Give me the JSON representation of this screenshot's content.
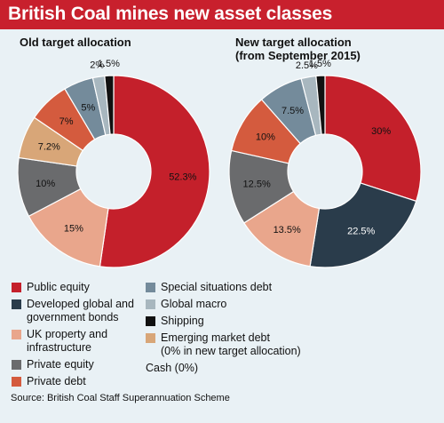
{
  "header": {
    "title": "British Coal mines new asset classes"
  },
  "colors": {
    "public_equity": "#c4202b",
    "developed_bonds": "#2a3c4b",
    "uk_property": "#e9a68c",
    "private_equity": "#6a6b6d",
    "private_debt": "#d45b3e",
    "special_situations": "#748b9b",
    "global_macro": "#a8b7bf",
    "shipping": "#111111",
    "emerging_debt": "#d8a678",
    "background": "#e9f1f5"
  },
  "chart_data": [
    {
      "type": "pie",
      "title": "Old target allocation",
      "subtitle": "",
      "slices": [
        {
          "label": "Public equity",
          "value": 52.3,
          "text": "52.3%",
          "color": "#c4202b",
          "text_color": "#111111"
        },
        {
          "label": "UK property and infrastructure",
          "value": 15,
          "text": "15%",
          "color": "#e9a68c",
          "text_color": "#111111"
        },
        {
          "label": "Private equity",
          "value": 10,
          "text": "10%",
          "color": "#6a6b6d",
          "text_color": "#111111"
        },
        {
          "label": "Emerging market debt",
          "value": 7.2,
          "text": "7.2%",
          "color": "#d8a678",
          "text_color": "#111111"
        },
        {
          "label": "Private debt",
          "value": 7,
          "text": "7%",
          "color": "#d45b3e",
          "text_color": "#111111"
        },
        {
          "label": "Special situations debt",
          "value": 5,
          "text": "5%",
          "color": "#748b9b",
          "text_color": "#111111"
        },
        {
          "label": "Global macro",
          "value": 2,
          "text": "2%",
          "color": "#a8b7bf",
          "text_color": "#111111"
        },
        {
          "label": "Shipping",
          "value": 1.5,
          "text": "1.5%",
          "color": "#111111",
          "text_color": "#111111"
        }
      ]
    },
    {
      "type": "pie",
      "title": "New target allocation",
      "subtitle": "(from September 2015)",
      "slices": [
        {
          "label": "Public equity",
          "value": 30,
          "text": "30%",
          "color": "#c4202b",
          "text_color": "#111111"
        },
        {
          "label": "Developed global and government bonds",
          "value": 22.5,
          "text": "22.5%",
          "color": "#2a3c4b",
          "text_color": "#ffffff"
        },
        {
          "label": "UK property and infrastructure",
          "value": 13.5,
          "text": "13.5%",
          "color": "#e9a68c",
          "text_color": "#111111"
        },
        {
          "label": "Private equity",
          "value": 12.5,
          "text": "12.5%",
          "color": "#6a6b6d",
          "text_color": "#111111"
        },
        {
          "label": "Private debt",
          "value": 10,
          "text": "10%",
          "color": "#d45b3e",
          "text_color": "#111111"
        },
        {
          "label": "Special situations debt",
          "value": 7.5,
          "text": "7.5%",
          "color": "#748b9b",
          "text_color": "#111111"
        },
        {
          "label": "Global macro",
          "value": 2.5,
          "text": "2.5%",
          "color": "#a8b7bf",
          "text_color": "#111111"
        },
        {
          "label": "Shipping",
          "value": 1.5,
          "text": "1.5%",
          "color": "#111111",
          "text_color": "#111111"
        }
      ]
    }
  ],
  "legend": {
    "col1": [
      {
        "lines": [
          "Public equity"
        ],
        "color": "#c4202b"
      },
      {
        "lines": [
          "Developed global and",
          "government bonds"
        ],
        "color": "#2a3c4b"
      },
      {
        "lines": [
          "UK property and",
          "infrastructure"
        ],
        "color": "#e9a68c"
      },
      {
        "lines": [
          "Private equity"
        ],
        "color": "#6a6b6d"
      },
      {
        "lines": [
          "Private debt"
        ],
        "color": "#d45b3e"
      }
    ],
    "col2": [
      {
        "lines": [
          "Special situations debt"
        ],
        "color": "#748b9b"
      },
      {
        "lines": [
          "Global macro"
        ],
        "color": "#a8b7bf"
      },
      {
        "lines": [
          "Shipping"
        ],
        "color": "#111111"
      },
      {
        "lines": [
          "Emerging market debt",
          "(0% in new target allocation)"
        ],
        "color": "#d8a678"
      },
      {
        "lines": [
          "Cash (0%)"
        ],
        "color": ""
      }
    ]
  },
  "source": "Source: British Coal Staff Superannuation Scheme"
}
